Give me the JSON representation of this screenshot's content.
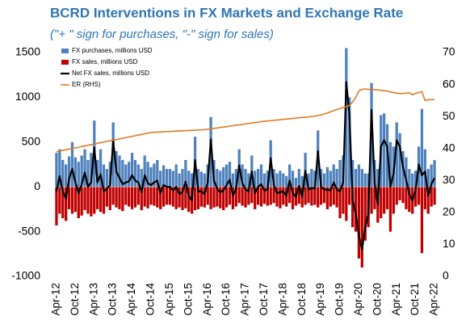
{
  "chart_data": {
    "type": "combo",
    "title": "BCRD Interventions in FX Markets and Exchange Rate",
    "subtitle": "(\"+ \" sign for purchases, \"-\" sign for sales)",
    "categories": [
      "Apr-12",
      null,
      null,
      null,
      null,
      null,
      "Oct-12",
      null,
      null,
      null,
      null,
      null,
      "Apr-13",
      null,
      null,
      null,
      null,
      null,
      "Oct-13",
      null,
      null,
      null,
      null,
      null,
      "Apr-14",
      null,
      null,
      null,
      null,
      null,
      "Oct-14",
      null,
      null,
      null,
      null,
      null,
      "Apr-15",
      null,
      null,
      null,
      null,
      null,
      "Oct-15",
      null,
      null,
      null,
      null,
      null,
      "Apr-16",
      null,
      null,
      null,
      null,
      null,
      "Oct-16",
      null,
      null,
      null,
      null,
      null,
      "Apr-17",
      null,
      null,
      null,
      null,
      null,
      "Oct-17",
      null,
      null,
      null,
      null,
      null,
      "Apr-18",
      null,
      null,
      null,
      null,
      null,
      "Oct-18",
      null,
      null,
      null,
      null,
      null,
      "Apr-19",
      null,
      null,
      null,
      null,
      null,
      "Oct-19",
      null,
      null,
      null,
      null,
      null,
      "Apr-20",
      null,
      null,
      null,
      null,
      null,
      "Oct-20",
      null,
      null,
      null,
      null,
      null,
      "Apr-21",
      null,
      null,
      null,
      null,
      null,
      "Oct-21",
      null,
      null,
      null,
      null,
      null,
      "Apr-22"
    ],
    "series": [
      {
        "name": "FX purchases, millions USD",
        "type": "bar",
        "color": "#4f81bd",
        "values": [
          380,
          420,
          300,
          250,
          340,
          500,
          330,
          280,
          350,
          420,
          300,
          380,
          740,
          300,
          420,
          250,
          200,
          280,
          720,
          400,
          350,
          300,
          250,
          280,
          380,
          300,
          250,
          200,
          350,
          280,
          220,
          260,
          300,
          180,
          240,
          200,
          200,
          180,
          250,
          150,
          200,
          300,
          180,
          150,
          560,
          200,
          170,
          150,
          250,
          780,
          300,
          200,
          180,
          220,
          250,
          280,
          150,
          200,
          420,
          250,
          200,
          150,
          350,
          180,
          200,
          250,
          150,
          180,
          520,
          200,
          150,
          180,
          150,
          120,
          250,
          180,
          100,
          200,
          120,
          380,
          150,
          200,
          180,
          630,
          200,
          150,
          220,
          180,
          250,
          200,
          300,
          350,
          1550,
          1000,
          300,
          200,
          250,
          200,
          150,
          150,
          1160,
          300,
          200,
          800,
          820,
          700,
          500,
          450,
          720,
          600,
          400,
          330,
          200,
          150,
          180,
          450,
          870,
          420,
          200,
          250,
          300
        ]
      },
      {
        "name": "FX sales, millions USD",
        "type": "bar",
        "color": "#c00000",
        "values": [
          -430,
          -300,
          -350,
          -380,
          -250,
          -300,
          -280,
          -350,
          -320,
          -260,
          -300,
          -330,
          -300,
          -250,
          -280,
          -300,
          -220,
          -260,
          -200,
          -230,
          -250,
          -270,
          -200,
          -220,
          -250,
          -230,
          -200,
          -260,
          -220,
          -240,
          -200,
          -210,
          -230,
          -250,
          -220,
          -200,
          -200,
          -220,
          -250,
          -230,
          -260,
          -240,
          -280,
          -300,
          -260,
          -250,
          -220,
          -230,
          -200,
          -250,
          -230,
          -220,
          -240,
          -260,
          -230,
          -200,
          -250,
          -220,
          -180,
          -210,
          -230,
          -200,
          -180,
          -250,
          -200,
          -220,
          -190,
          -210,
          -200,
          -180,
          -220,
          -240,
          -200,
          -220,
          -180,
          -250,
          -210,
          -190,
          -230,
          -200,
          -180,
          -210,
          -200,
          -230,
          -200,
          -180,
          -250,
          -220,
          -200,
          -230,
          -350,
          -300,
          -380,
          -200,
          -450,
          -500,
          -800,
          -900,
          -600,
          -450,
          -300,
          -250,
          -400,
          -350,
          -300,
          -250,
          -500,
          -300,
          -200,
          -150,
          -180,
          -250,
          -280,
          -300,
          -220,
          -200,
          -740,
          -250,
          -300,
          -220,
          -200
        ]
      },
      {
        "name": "Net FX sales, millions USD",
        "type": "line",
        "color": "#000000",
        "width": 2.2,
        "values": [
          -50,
          120,
          -50,
          -130,
          90,
          200,
          50,
          -70,
          30,
          160,
          0,
          50,
          440,
          50,
          140,
          -50,
          -20,
          20,
          520,
          170,
          100,
          30,
          50,
          60,
          130,
          70,
          50,
          -60,
          130,
          40,
          20,
          50,
          70,
          -70,
          20,
          0,
          0,
          -40,
          0,
          -80,
          -60,
          60,
          -100,
          -150,
          300,
          -50,
          -50,
          -80,
          50,
          530,
          70,
          -20,
          -60,
          -40,
          20,
          80,
          -100,
          -20,
          240,
          40,
          -30,
          -50,
          170,
          -70,
          0,
          30,
          -40,
          -30,
          320,
          20,
          -70,
          -60,
          -50,
          -100,
          70,
          -70,
          -110,
          10,
          -110,
          180,
          -30,
          -10,
          -20,
          400,
          0,
          -30,
          -30,
          -40,
          50,
          -30,
          -50,
          50,
          1170,
          800,
          -150,
          -300,
          -550,
          -700,
          -450,
          -300,
          860,
          50,
          -200,
          450,
          520,
          450,
          0,
          150,
          520,
          450,
          220,
          80,
          -80,
          -150,
          -40,
          250,
          130,
          170,
          -100,
          30,
          100
        ]
      },
      {
        "name": "ER (RHS)",
        "type": "line",
        "axis": "y2",
        "color": "#e07b21",
        "width": 1.6,
        "values": [
          39.0,
          39.2,
          39.4,
          39.6,
          39.8,
          40.0,
          40.2,
          40.4,
          40.6,
          40.8,
          41.0,
          41.2,
          41.4,
          41.6,
          41.8,
          42.0,
          42.2,
          42.4,
          42.6,
          42.8,
          43.0,
          43.2,
          43.4,
          43.6,
          43.8,
          44.0,
          44.2,
          44.4,
          44.6,
          44.8,
          45.0,
          45.1,
          45.1,
          45.2,
          45.2,
          45.3,
          45.3,
          45.4,
          45.4,
          45.5,
          45.5,
          45.6,
          45.6,
          45.7,
          45.7,
          45.8,
          45.8,
          45.9,
          46.0,
          46.1,
          46.3,
          46.4,
          46.6,
          46.7,
          46.8,
          47.0,
          47.1,
          47.3,
          47.4,
          47.5,
          47.7,
          47.8,
          48.0,
          48.1,
          48.2,
          48.4,
          48.5,
          48.6,
          48.7,
          48.8,
          48.9,
          49.0,
          49.1,
          49.2,
          49.3,
          49.4,
          49.5,
          49.6,
          49.7,
          49.8,
          49.9,
          50.0,
          50.1,
          50.3,
          50.5,
          50.8,
          51.1,
          51.5,
          51.8,
          52.2,
          52.5,
          52.8,
          53.1,
          53.5,
          54.5,
          56.0,
          58.0,
          58.5,
          58.6,
          58.5,
          58.4,
          58.4,
          58.3,
          58.2,
          58.1,
          57.9,
          57.7,
          57.5,
          57.3,
          57.2,
          57.2,
          57.3,
          57.4,
          56.8,
          57.2,
          57.5,
          57.8,
          55.0,
          55.2,
          55.3,
          55.3
        ]
      }
    ],
    "ylim": [
      -1000,
      1500
    ],
    "yticks": [
      -1000,
      -500,
      0,
      500,
      1000,
      1500
    ],
    "y2lim": [
      0,
      70
    ],
    "y2ticks": [
      0,
      10,
      20,
      30,
      40,
      50,
      60,
      70
    ],
    "grid": false,
    "legend": "top-left"
  }
}
